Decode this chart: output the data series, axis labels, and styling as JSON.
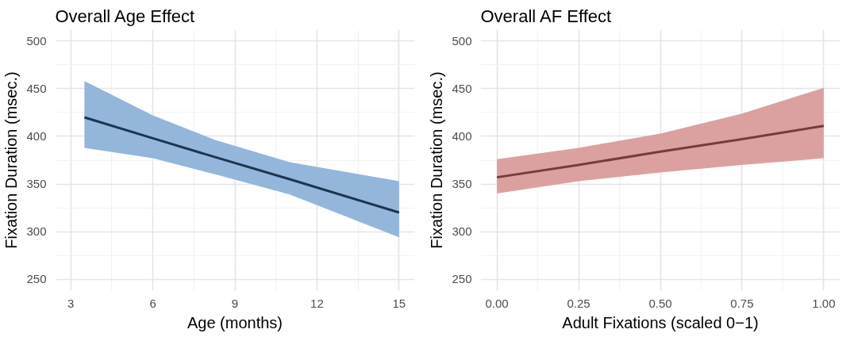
{
  "chart_data": [
    {
      "type": "line",
      "title": "Overall Age Effect",
      "xlabel": "Age (months)",
      "ylabel": "Fixation Duration (msec.)",
      "x": [
        3.5,
        6,
        8.3,
        11,
        15
      ],
      "xlim": [
        2.43,
        15.57
      ],
      "xticks": [
        3,
        6,
        9,
        12,
        15
      ],
      "ylim": [
        238,
        512
      ],
      "yticks": [
        250,
        300,
        350,
        400,
        450,
        500
      ],
      "grid": true,
      "series": [
        {
          "color": "#1c3550",
          "values": [
            420,
            398,
            378,
            355,
            320
          ],
          "lower": [
            388,
            377,
            360,
            339,
            294
          ],
          "upper": [
            458,
            422,
            396,
            373,
            353
          ]
        }
      ]
    },
    {
      "type": "line",
      "title": "Overall AF Effect",
      "xlabel": "Adult Fixations (scaled 0−1)",
      "ylabel": "Fixation Duration (msec.)",
      "x": [
        0,
        0.25,
        0.5,
        0.75,
        1
      ],
      "xlim": [
        -0.05,
        1.05
      ],
      "xticks": [
        {
          "value": 0,
          "label": "0.00"
        },
        {
          "value": 0.25,
          "label": "0.25"
        },
        {
          "value": 0.5,
          "label": "0.50"
        },
        {
          "value": 0.75,
          "label": "0.75"
        },
        {
          "value": 1,
          "label": "1.00"
        }
      ],
      "ylim": [
        238,
        512
      ],
      "yticks": [
        250,
        300,
        350,
        400,
        450,
        500
      ],
      "grid": true,
      "series": [
        {
          "color": "#7a3a3a",
          "values": [
            357,
            370,
            384,
            397,
            411
          ],
          "lower": [
            340,
            353,
            362,
            370,
            377
          ],
          "upper": [
            376,
            388,
            403,
            424,
            451
          ]
        }
      ]
    }
  ]
}
